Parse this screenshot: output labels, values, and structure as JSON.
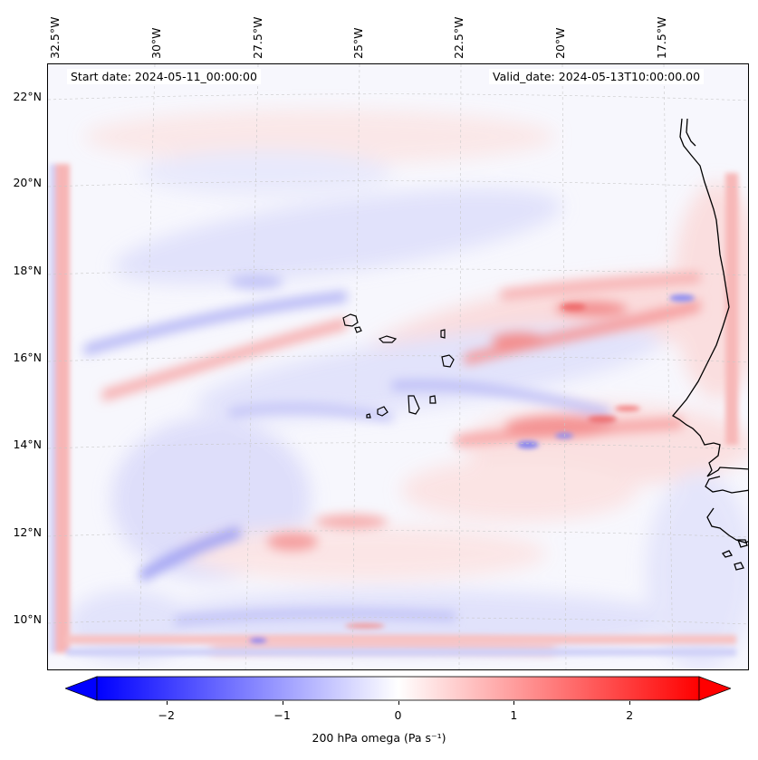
{
  "map": {
    "start_date": "Start date: 2024-05-11_00:00:00",
    "valid_date": "Valid_date: 2024-05-13T10:00:00.00",
    "lon_labels": [
      "32.5°W",
      "30°W",
      "27.5°W",
      "25°W",
      "22.5°W",
      "20°W",
      "17.5°W"
    ],
    "lat_labels": [
      "22°N",
      "20°N",
      "18°N",
      "16°N",
      "14°N",
      "12°N",
      "10°N"
    ],
    "extent": {
      "lon_min": -33.0,
      "lon_max": -15.3,
      "lat_min": 8.9,
      "lat_max": 22.8
    },
    "islands": [
      "Santo Antão",
      "São Vicente",
      "São Nicolau",
      "Sal",
      "Boa Vista",
      "Maio",
      "Santiago",
      "Fogo",
      "Brava"
    ],
    "coastline": "West Africa (Mauritania, Senegal, Gambia, Guinea-Bissau)"
  },
  "colorbar": {
    "label": "200 hPa omega (Pa s⁻¹)",
    "ticks": [
      "−2",
      "−1",
      "0",
      "1",
      "2"
    ],
    "tick_values": [
      -2,
      -1,
      0,
      1,
      2
    ],
    "range": [
      -2.6,
      2.6
    ],
    "extend": "both",
    "colormap": "bwr",
    "color_low": "#0000ff",
    "color_mid": "#ffffff",
    "color_high": "#ff0000"
  }
}
